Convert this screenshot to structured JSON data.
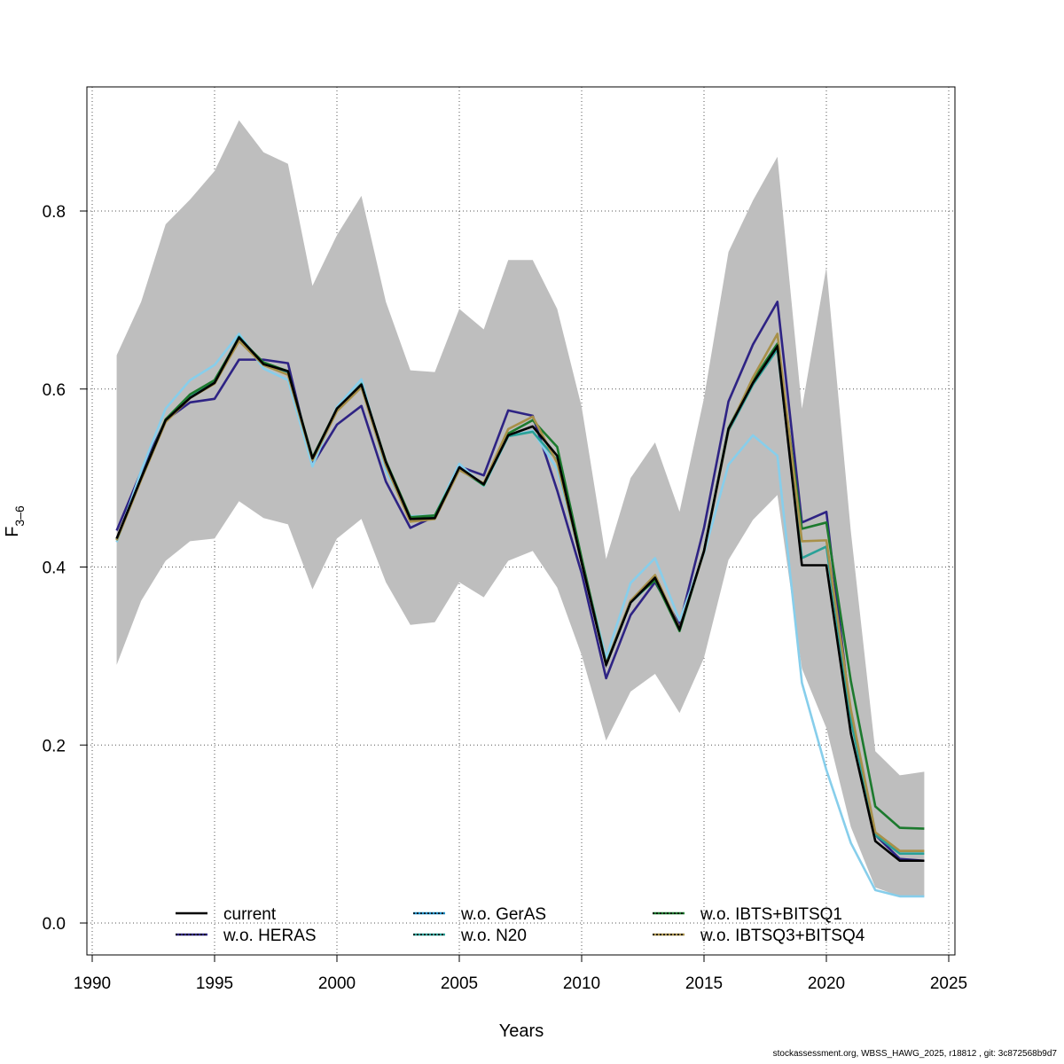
{
  "chart_data": {
    "type": "line",
    "title": "",
    "xlabel": "Years",
    "ylabel": "F3-6",
    "ylabel_main": "F",
    "ylabel_sub": "3–6",
    "xlim": [
      1990,
      2025
    ],
    "ylim": [
      -0.03,
      0.93
    ],
    "xticks": [
      1990,
      1995,
      2000,
      2005,
      2010,
      2015,
      2020,
      2025
    ],
    "yticks": [
      0.0,
      0.2,
      0.4,
      0.6,
      0.8
    ],
    "ytick_labels": [
      "0.0",
      "0.2",
      "0.4",
      "0.6",
      "0.8"
    ],
    "grid": true,
    "legend_position": "bottom",
    "x": [
      1991,
      1992,
      1993,
      1994,
      1995,
      1996,
      1997,
      1998,
      1999,
      2000,
      2001,
      2002,
      2003,
      2004,
      2005,
      2006,
      2007,
      2008,
      2009,
      2010,
      2011,
      2012,
      2013,
      2014,
      2015,
      2016,
      2017,
      2018,
      2019,
      2020,
      2021,
      2022,
      2023,
      2024
    ],
    "band": {
      "color": "#bebebe",
      "upper": [
        0.638,
        0.698,
        0.785,
        0.813,
        0.845,
        0.902,
        0.866,
        0.853,
        0.716,
        0.773,
        0.817,
        0.698,
        0.621,
        0.619,
        0.69,
        0.667,
        0.745,
        0.745,
        0.69,
        0.58,
        0.409,
        0.5,
        0.54,
        0.462,
        0.59,
        0.754,
        0.812,
        0.861,
        0.578,
        0.737,
        0.44,
        0.193,
        0.166,
        0.17
      ],
      "lower": [
        0.29,
        0.362,
        0.407,
        0.429,
        0.432,
        0.474,
        0.455,
        0.448,
        0.375,
        0.432,
        0.454,
        0.383,
        0.335,
        0.338,
        0.383,
        0.366,
        0.407,
        0.418,
        0.377,
        0.301,
        0.205,
        0.26,
        0.28,
        0.236,
        0.298,
        0.408,
        0.453,
        0.481,
        0.286,
        0.219,
        0.108,
        0.04,
        0.03,
        0.03
      ]
    },
    "series": [
      {
        "name": "current",
        "color": "#000000",
        "dashed": false,
        "values": [
          0.432,
          0.5,
          0.565,
          0.59,
          0.607,
          0.658,
          0.628,
          0.62,
          0.522,
          0.578,
          0.605,
          0.518,
          0.454,
          0.455,
          0.512,
          0.493,
          0.548,
          0.558,
          0.525,
          0.405,
          0.29,
          0.36,
          0.388,
          0.33,
          0.418,
          0.555,
          0.607,
          0.648,
          0.402,
          0.402,
          0.213,
          0.092,
          0.07,
          0.07
        ]
      },
      {
        "name": "w.o. HERAS",
        "color": "#2e2384",
        "dashed": false,
        "values": [
          0.441,
          0.507,
          0.565,
          0.585,
          0.589,
          0.633,
          0.633,
          0.629,
          0.515,
          0.56,
          0.581,
          0.496,
          0.444,
          0.457,
          0.513,
          0.503,
          0.576,
          0.57,
          0.486,
          0.393,
          0.275,
          0.346,
          0.383,
          0.335,
          0.444,
          0.586,
          0.65,
          0.698,
          0.45,
          0.462,
          0.231,
          0.099,
          0.072,
          0.07
        ]
      },
      {
        "name": "w.o. GerAS",
        "color": "#87ceeb",
        "dashed": false,
        "values": [
          0.428,
          0.508,
          0.578,
          0.61,
          0.627,
          0.662,
          0.623,
          0.61,
          0.513,
          0.58,
          0.611,
          0.508,
          0.457,
          0.458,
          0.516,
          0.491,
          0.547,
          0.553,
          0.51,
          0.406,
          0.298,
          0.382,
          0.41,
          0.34,
          0.415,
          0.515,
          0.548,
          0.525,
          0.27,
          0.172,
          0.09,
          0.037,
          0.03,
          0.03
        ]
      },
      {
        "name": "w.o. N20",
        "color": "#2aa198",
        "dashed": false,
        "values": [
          0.43,
          0.5,
          0.565,
          0.591,
          0.608,
          0.659,
          0.628,
          0.619,
          0.521,
          0.577,
          0.606,
          0.518,
          0.454,
          0.457,
          0.51,
          0.492,
          0.547,
          0.552,
          0.52,
          0.406,
          0.29,
          0.36,
          0.386,
          0.33,
          0.418,
          0.553,
          0.605,
          0.645,
          0.41,
          0.423,
          0.228,
          0.099,
          0.078,
          0.078
        ]
      },
      {
        "name": "w.o. IBTS+BITSQ1",
        "color": "#1c7a2e",
        "dashed": false,
        "values": [
          0.431,
          0.5,
          0.566,
          0.594,
          0.61,
          0.657,
          0.63,
          0.62,
          0.523,
          0.578,
          0.604,
          0.519,
          0.456,
          0.458,
          0.511,
          0.492,
          0.55,
          0.565,
          0.535,
          0.41,
          0.291,
          0.362,
          0.385,
          0.328,
          0.418,
          0.556,
          0.61,
          0.651,
          0.443,
          0.45,
          0.272,
          0.131,
          0.107,
          0.106
        ]
      },
      {
        "name": "w.o. IBTSQ3+BITSQ4",
        "color": "#a89048",
        "dashed": false,
        "values": [
          0.43,
          0.498,
          0.563,
          0.59,
          0.606,
          0.654,
          0.627,
          0.616,
          0.52,
          0.575,
          0.602,
          0.514,
          0.451,
          0.454,
          0.509,
          0.494,
          0.555,
          0.569,
          0.517,
          0.405,
          0.29,
          0.362,
          0.391,
          0.331,
          0.417,
          0.554,
          0.613,
          0.662,
          0.429,
          0.43,
          0.24,
          0.102,
          0.081,
          0.081
        ]
      }
    ],
    "legend": [
      {
        "label": "current",
        "color": "#000000",
        "dot_color": ""
      },
      {
        "label": "w.o. HERAS",
        "color": "#2e2384",
        "dot_color": "#000000"
      },
      {
        "label": "w.o. GerAS",
        "color": "#1e90c8",
        "dot_color": "#000000"
      },
      {
        "label": "w.o. N20",
        "color": "#2aa198",
        "dot_color": "#000000"
      },
      {
        "label": "w.o. IBTS+BITSQ1",
        "color": "#1c7a2e",
        "dot_color": "#000000"
      },
      {
        "label": "w.o. IBTSQ3+BITSQ4",
        "color": "#a89048",
        "dot_color": "#000000"
      }
    ],
    "current_dashed_overlay": {
      "color": "#000000",
      "from_year": 2007,
      "to_year": 2024
    }
  },
  "footer": "stockassessment.org, WBSS_HAWG_2025, r18812 , git: 3c872568b9d7"
}
